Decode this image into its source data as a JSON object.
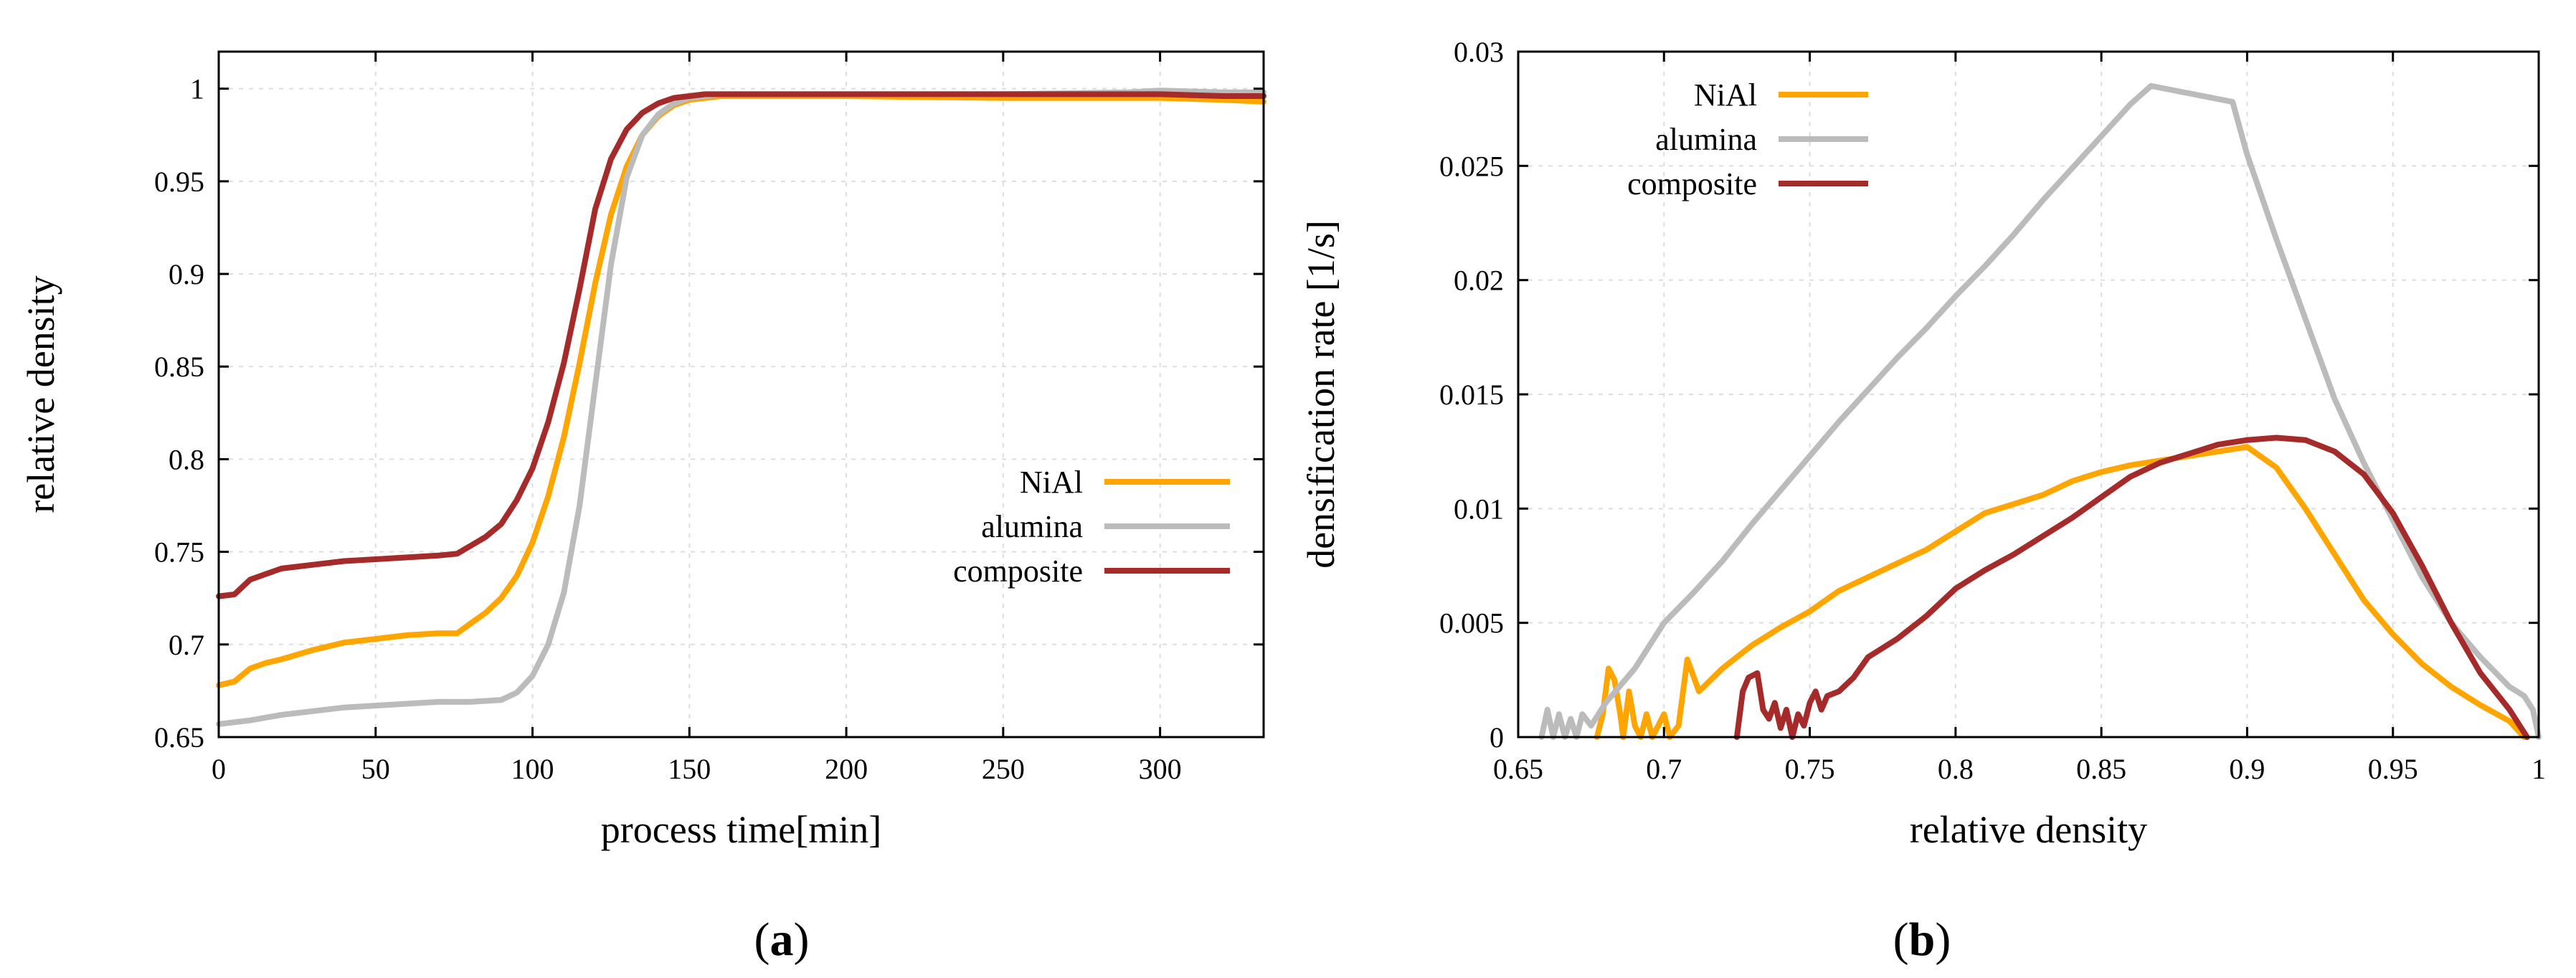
{
  "chart_data": [
    {
      "type": "line",
      "xlabel": "process time[min]",
      "ylabel": "relative density",
      "xlim": [
        0,
        333
      ],
      "ylim": [
        0.65,
        1.02
      ],
      "xticks": [
        "0",
        "50",
        "100",
        "150",
        "200",
        "250",
        "300"
      ],
      "yticks": [
        "0.65",
        "0.7",
        "0.75",
        "0.8",
        "0.85",
        "0.9",
        "0.95",
        "1"
      ],
      "legend_position": "center-right",
      "grid": true,
      "sublabel": {
        "open": "(",
        "letter": "a",
        "close": ")"
      },
      "series": [
        {
          "name": "NiAl",
          "color": "#FFA500",
          "x": [
            0,
            5,
            10,
            15,
            20,
            30,
            40,
            50,
            60,
            70,
            76,
            80,
            85,
            90,
            95,
            100,
            105,
            110,
            115,
            120,
            125,
            130,
            135,
            140,
            145,
            150,
            155,
            160,
            170,
            200,
            250,
            300,
            320,
            333
          ],
          "y": [
            0.678,
            0.68,
            0.687,
            0.69,
            0.692,
            0.697,
            0.701,
            0.703,
            0.705,
            0.706,
            0.706,
            0.711,
            0.717,
            0.725,
            0.737,
            0.755,
            0.78,
            0.812,
            0.852,
            0.895,
            0.932,
            0.958,
            0.975,
            0.985,
            0.991,
            0.994,
            0.995,
            0.996,
            0.996,
            0.996,
            0.995,
            0.995,
            0.994,
            0.993
          ]
        },
        {
          "name": "alumina",
          "color": "#BBBBBB",
          "x": [
            0,
            10,
            20,
            30,
            40,
            50,
            60,
            70,
            80,
            90,
            95,
            100,
            105,
            110,
            115,
            120,
            125,
            130,
            135,
            140,
            145,
            150,
            155,
            160,
            170,
            200,
            250,
            290,
            300,
            320,
            333
          ],
          "y": [
            0.657,
            0.659,
            0.662,
            0.664,
            0.666,
            0.667,
            0.668,
            0.669,
            0.669,
            0.67,
            0.674,
            0.683,
            0.7,
            0.728,
            0.775,
            0.84,
            0.905,
            0.952,
            0.975,
            0.986,
            0.992,
            0.995,
            0.996,
            0.997,
            0.997,
            0.997,
            0.997,
            0.998,
            0.999,
            0.998,
            0.998
          ]
        },
        {
          "name": "composite",
          "color": "#A52A2A",
          "x": [
            0,
            5,
            10,
            15,
            20,
            30,
            40,
            50,
            60,
            70,
            76,
            80,
            85,
            90,
            95,
            100,
            105,
            110,
            115,
            120,
            125,
            130,
            135,
            140,
            145,
            150,
            155,
            160,
            170,
            200,
            250,
            300,
            320,
            333
          ],
          "y": [
            0.726,
            0.727,
            0.735,
            0.738,
            0.741,
            0.743,
            0.745,
            0.746,
            0.747,
            0.748,
            0.749,
            0.753,
            0.758,
            0.765,
            0.778,
            0.795,
            0.82,
            0.852,
            0.892,
            0.935,
            0.962,
            0.978,
            0.987,
            0.992,
            0.995,
            0.996,
            0.997,
            0.997,
            0.997,
            0.997,
            0.997,
            0.997,
            0.996,
            0.996
          ]
        }
      ]
    },
    {
      "type": "line",
      "xlabel": "relative density",
      "ylabel": "densification rate [1/s]",
      "xlim": [
        0.65,
        1.0
      ],
      "ylim": [
        0,
        0.03
      ],
      "xticks": [
        "0.65",
        "0.7",
        "0.75",
        "0.8",
        "0.85",
        "0.9",
        "0.95",
        "1"
      ],
      "yticks": [
        "0",
        "0.005",
        "0.01",
        "0.015",
        "0.02",
        "0.025",
        "0.03"
      ],
      "legend_position": "top-left",
      "grid": true,
      "sublabel": {
        "open": "(",
        "letter": "b",
        "close": ")"
      },
      "series": [
        {
          "name": "NiAl",
          "color": "#FFA500",
          "x": [
            0.677,
            0.679,
            0.681,
            0.683,
            0.685,
            0.686,
            0.688,
            0.69,
            0.692,
            0.694,
            0.696,
            0.698,
            0.7,
            0.702,
            0.705,
            0.708,
            0.712,
            0.72,
            0.73,
            0.74,
            0.75,
            0.76,
            0.77,
            0.78,
            0.79,
            0.8,
            0.81,
            0.82,
            0.83,
            0.84,
            0.85,
            0.86,
            0.87,
            0.88,
            0.89,
            0.9,
            0.91,
            0.92,
            0.93,
            0.94,
            0.95,
            0.96,
            0.97,
            0.98,
            0.99,
            0.995
          ],
          "y": [
            0,
            0.001,
            0.003,
            0.0025,
            0.001,
            0,
            0.002,
            0.0005,
            0,
            0.001,
            0,
            0.0005,
            0.001,
            0,
            0.0005,
            0.0034,
            0.002,
            0.003,
            0.004,
            0.0048,
            0.0055,
            0.0064,
            0.007,
            0.0076,
            0.0082,
            0.009,
            0.0098,
            0.0102,
            0.0106,
            0.0112,
            0.0116,
            0.0119,
            0.0121,
            0.0123,
            0.0125,
            0.0127,
            0.0118,
            0.01,
            0.008,
            0.006,
            0.0045,
            0.0032,
            0.0022,
            0.0014,
            0.0007,
            0
          ]
        },
        {
          "name": "alumina",
          "color": "#BBBBBB",
          "x": [
            0.658,
            0.66,
            0.662,
            0.664,
            0.666,
            0.668,
            0.67,
            0.672,
            0.675,
            0.68,
            0.69,
            0.7,
            0.71,
            0.72,
            0.73,
            0.74,
            0.75,
            0.76,
            0.77,
            0.78,
            0.79,
            0.8,
            0.81,
            0.82,
            0.83,
            0.84,
            0.85,
            0.86,
            0.867,
            0.895,
            0.9,
            0.91,
            0.92,
            0.93,
            0.94,
            0.95,
            0.96,
            0.97,
            0.98,
            0.99,
            0.995,
            0.998,
            1.0
          ],
          "y": [
            0,
            0.0012,
            0,
            0.001,
            0,
            0.0008,
            0,
            0.001,
            0.0005,
            0.0015,
            0.003,
            0.005,
            0.0063,
            0.0077,
            0.0093,
            0.0108,
            0.0123,
            0.0138,
            0.0152,
            0.0166,
            0.0179,
            0.0193,
            0.0206,
            0.022,
            0.0235,
            0.0249,
            0.0263,
            0.0277,
            0.0285,
            0.0278,
            0.0255,
            0.0218,
            0.0183,
            0.0148,
            0.012,
            0.0095,
            0.007,
            0.005,
            0.0035,
            0.0022,
            0.0018,
            0.0012,
            0
          ]
        },
        {
          "name": "composite",
          "color": "#A52A2A",
          "x": [
            0.725,
            0.727,
            0.729,
            0.732,
            0.734,
            0.736,
            0.738,
            0.74,
            0.742,
            0.744,
            0.746,
            0.748,
            0.75,
            0.752,
            0.754,
            0.756,
            0.76,
            0.765,
            0.77,
            0.78,
            0.79,
            0.8,
            0.81,
            0.82,
            0.83,
            0.84,
            0.85,
            0.86,
            0.87,
            0.88,
            0.89,
            0.9,
            0.91,
            0.92,
            0.93,
            0.94,
            0.95,
            0.96,
            0.97,
            0.98,
            0.99,
            0.996
          ],
          "y": [
            0,
            0.002,
            0.0026,
            0.0028,
            0.0012,
            0.0008,
            0.0015,
            0.0004,
            0.0012,
            0,
            0.001,
            0.0005,
            0.0015,
            0.002,
            0.0012,
            0.0018,
            0.002,
            0.0026,
            0.0035,
            0.0043,
            0.0053,
            0.0065,
            0.0073,
            0.008,
            0.0088,
            0.0096,
            0.0105,
            0.0114,
            0.012,
            0.0124,
            0.0128,
            0.013,
            0.0131,
            0.013,
            0.0125,
            0.0115,
            0.0098,
            0.0075,
            0.005,
            0.0028,
            0.0012,
            0
          ]
        }
      ]
    }
  ]
}
